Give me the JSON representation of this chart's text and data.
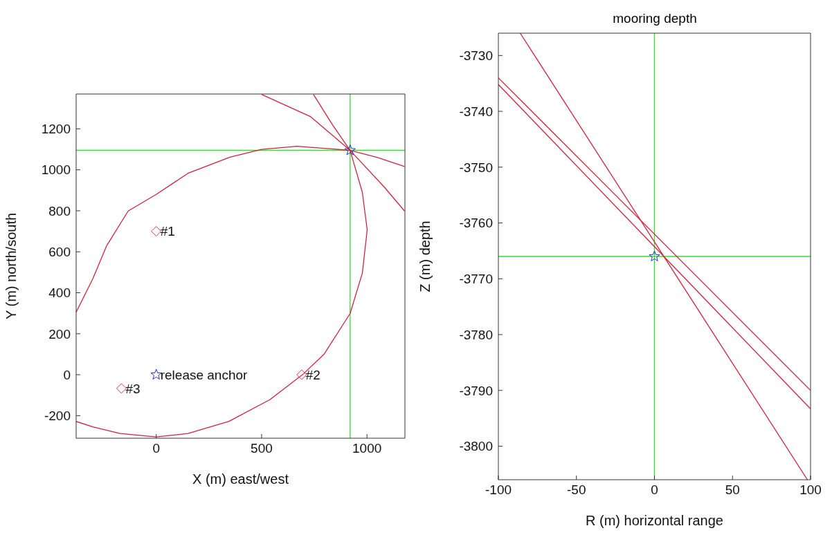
{
  "chart_data": [
    {
      "type": "line",
      "xlabel": "X (m) east/west",
      "ylabel": "Y (m) north/south",
      "xlim": [
        -380,
        1180
      ],
      "ylim": [
        -310,
        1370
      ],
      "xticks": [
        0,
        500,
        1000
      ],
      "yticks": [
        -200,
        0,
        200,
        400,
        600,
        800,
        1000,
        1200
      ],
      "grid": false,
      "ref_lines": [
        {
          "axis": "x",
          "value": 920,
          "color": "#33dd33"
        },
        {
          "axis": "y",
          "value": 1095,
          "color": "#33dd33"
        }
      ],
      "series": [
        {
          "type": "line",
          "color": "#d0203c",
          "marker": "none",
          "x": [
            -380,
            -300,
            -236,
            -133,
            0,
            151,
            350,
            500,
            668,
            797,
            920,
            978,
            1001,
            978,
            920,
            797,
            694,
            539,
            345,
            151,
            0,
            -172,
            -300,
            -380
          ],
          "values": [
            305,
            470,
            628,
            799,
            880,
            983,
            1062,
            1100,
            1115,
            1105,
            1095,
            890,
            707,
            496,
            299,
            101,
            0,
            -122,
            -228,
            -287,
            -304,
            -287,
            -255,
            -228
          ]
        },
        {
          "type": "line",
          "color": "#d0203c",
          "marker": "none",
          "x": [
            500,
            733,
            920,
            1050,
            1178
          ],
          "values": [
            1368,
            1259,
            1095,
            1060,
            1016
          ]
        },
        {
          "type": "line",
          "color": "#d0203c",
          "marker": "none",
          "x": [
            746,
            836,
            920,
            1081,
            1178
          ],
          "values": [
            1368,
            1220,
            1095,
            917,
            799
          ]
        },
        {
          "type": "scatter",
          "color": "#e03050",
          "marker": "diamond",
          "x": [
            0,
            690,
            -165
          ],
          "values": [
            700,
            0,
            -67
          ]
        },
        {
          "type": "scatter",
          "color": "#2030c0",
          "marker": "star",
          "x": [
            0,
            920
          ],
          "values": [
            0,
            1095
          ]
        }
      ],
      "annotations": [
        {
          "text": "#1",
          "x": 0,
          "y": 700
        },
        {
          "text": "#2",
          "x": 690,
          "y": 0
        },
        {
          "text": "#3",
          "x": -165,
          "y": -67
        },
        {
          "text": "release anchor",
          "x": 0,
          "y": 0
        }
      ]
    },
    {
      "type": "line",
      "title": "mooring depth",
      "xlabel": "R (m) horizontal range",
      "ylabel": "Z (m) depth",
      "xlim": [
        -100,
        100
      ],
      "ylim": [
        -3806,
        -3726
      ],
      "xticks": [
        -100,
        -50,
        0,
        50,
        100
      ],
      "yticks": [
        -3800,
        -3790,
        -3780,
        -3770,
        -3760,
        -3750,
        -3740,
        -3730
      ],
      "grid": false,
      "ref_lines": [
        {
          "axis": "x",
          "value": 0,
          "color": "#33dd33"
        },
        {
          "axis": "y",
          "value": -3766,
          "color": "#33dd33"
        }
      ],
      "series": [
        {
          "type": "line",
          "color": "#d0203c",
          "marker": "none",
          "x": [
            -86,
            98
          ],
          "values": [
            -3726,
            -3806
          ]
        },
        {
          "type": "line",
          "color": "#d0203c",
          "marker": "none",
          "x": [
            -100,
            100
          ],
          "values": [
            -3734,
            -3790
          ]
        },
        {
          "type": "line",
          "color": "#d0203c",
          "marker": "none",
          "x": [
            -100,
            100
          ],
          "values": [
            -3735.2,
            -3793.3
          ]
        },
        {
          "type": "scatter",
          "color": "#2030c0",
          "marker": "star",
          "x": [
            0
          ],
          "values": [
            -3766
          ]
        }
      ]
    }
  ]
}
